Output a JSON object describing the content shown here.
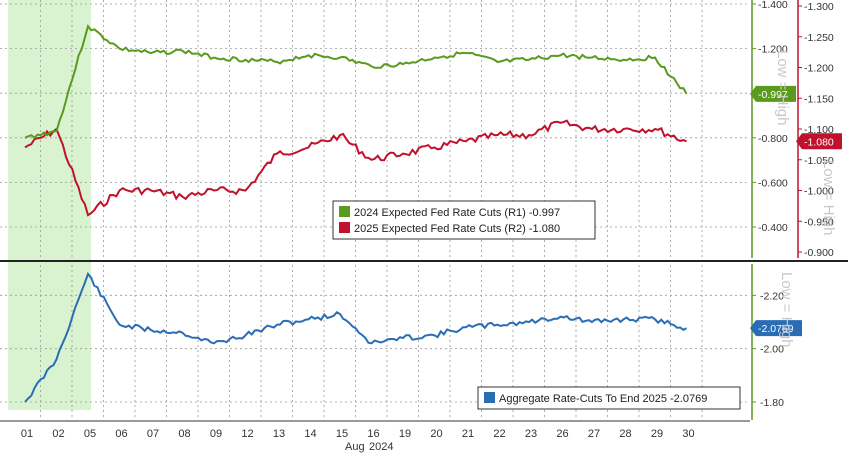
{
  "chart_data": [
    {
      "type": "line",
      "panel": "top",
      "x": [
        "01",
        "02",
        "05",
        "06",
        "07",
        "08",
        "09",
        "12",
        "13",
        "14",
        "15",
        "16",
        "19",
        "20",
        "21",
        "22",
        "23",
        "26",
        "27",
        "28",
        "29",
        "30"
      ],
      "series": [
        {
          "name": "2024 Expected Fed Rate Cuts (R1)",
          "legend_label": "2024 Expected Fed Rate Cuts (R1)",
          "legend_value": "-0.997",
          "axis": "R1",
          "color": "#5a9a1e",
          "values": [
            -0.8,
            -0.83,
            -1.3,
            -1.2,
            -1.18,
            -1.19,
            -1.16,
            -1.15,
            -1.14,
            -1.17,
            -1.16,
            -1.12,
            -1.13,
            -1.16,
            -1.18,
            -1.14,
            -1.15,
            -1.17,
            -1.16,
            -1.15,
            -1.16,
            -0.997
          ]
        },
        {
          "name": "2025 Expected Fed Rate Cuts (R2)",
          "legend_label": "2025 Expected Fed Rate Cuts (R2)",
          "legend_value": "-1.080",
          "axis": "R2",
          "color": "#c0122c",
          "values": [
            -1.07,
            -1.1,
            -0.96,
            -1.0,
            -1.0,
            -0.99,
            -1.0,
            -1.0,
            -1.06,
            -1.07,
            -1.09,
            -1.05,
            -1.06,
            -1.07,
            -1.08,
            -1.09,
            -1.09,
            -1.11,
            -1.1,
            -1.1,
            -1.1,
            -1.08
          ]
        }
      ],
      "r1_axis": {
        "ticks": [
          "-1.400",
          "-1.200",
          "-1.000",
          "-0.800",
          "-0.600",
          "-0.400"
        ],
        "ylim": [
          -1.4,
          -0.27
        ]
      },
      "r2_axis": {
        "ticks": [
          "-1.300",
          "-1.250",
          "-1.200",
          "-1.150",
          "-1.100",
          "-1.050",
          "-1.000",
          "-0.950",
          "-0.900"
        ],
        "ylim": [
          -1.3,
          -0.9
        ]
      },
      "last_value_tags": [
        {
          "text": "-0.997",
          "color": "#5a9a1e"
        },
        {
          "text": "-1.080",
          "color": "#c0122c"
        }
      ],
      "side_label": "Low = High"
    },
    {
      "type": "line",
      "panel": "bottom",
      "x": [
        "01",
        "02",
        "05",
        "06",
        "07",
        "08",
        "09",
        "12",
        "13",
        "14",
        "15",
        "16",
        "19",
        "20",
        "21",
        "22",
        "23",
        "26",
        "27",
        "28",
        "29",
        "30"
      ],
      "series": [
        {
          "name": "Aggregate Rate-Cuts To End 2025",
          "legend_label": "Aggregate Rate-Cuts To End 2025",
          "legend_value": "-2.0769",
          "color": "#2a6db5",
          "values": [
            -1.8,
            -1.96,
            -2.28,
            -2.09,
            -2.07,
            -2.06,
            -2.02,
            -2.05,
            -2.09,
            -2.11,
            -2.13,
            -2.02,
            -2.04,
            -2.05,
            -2.08,
            -2.09,
            -2.1,
            -2.12,
            -2.1,
            -2.11,
            -2.11,
            -2.0769
          ]
        }
      ],
      "axis": {
        "ticks": [
          "-2.20",
          "-2.00",
          "-1.80"
        ],
        "ylim": [
          -2.31,
          -1.74
        ]
      },
      "last_value_tag": {
        "text": "-2.0769",
        "color": "#2a6db5"
      },
      "side_label": "Low = High"
    }
  ],
  "x_axis": {
    "ticks": [
      "01",
      "02",
      "05",
      "06",
      "07",
      "08",
      "09",
      "12",
      "13",
      "14",
      "15",
      "16",
      "19",
      "20",
      "21",
      "22",
      "23",
      "26",
      "27",
      "28",
      "29",
      "30"
    ],
    "month_label": "Aug",
    "year_label": "2024"
  },
  "highlight": {
    "from": "01",
    "to": "05",
    "color": "#d9f2d0"
  }
}
